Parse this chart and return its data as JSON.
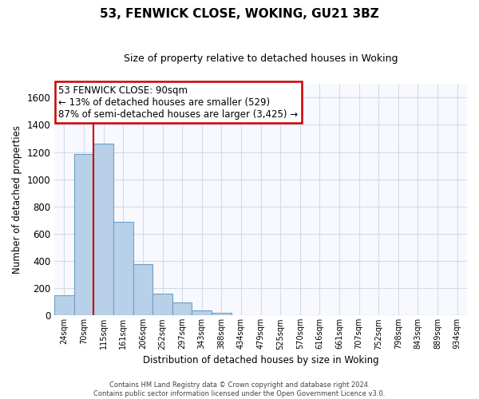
{
  "title": "53, FENWICK CLOSE, WOKING, GU21 3BZ",
  "subtitle": "Size of property relative to detached houses in Woking",
  "xlabel": "Distribution of detached houses by size in Woking",
  "ylabel": "Number of detached properties",
  "bar_labels": [
    "24sqm",
    "70sqm",
    "115sqm",
    "161sqm",
    "206sqm",
    "252sqm",
    "297sqm",
    "343sqm",
    "388sqm",
    "434sqm",
    "479sqm",
    "525sqm",
    "570sqm",
    "616sqm",
    "661sqm",
    "707sqm",
    "752sqm",
    "798sqm",
    "843sqm",
    "889sqm",
    "934sqm"
  ],
  "bar_values": [
    148,
    1185,
    1260,
    690,
    375,
    160,
    93,
    38,
    22,
    0,
    0,
    0,
    0,
    0,
    0,
    0,
    0,
    0,
    0,
    0,
    0
  ],
  "bar_color": "#b8d0e8",
  "bar_edge_color": "#6ca0c8",
  "vline_color": "#cc0000",
  "vline_x": 1.5,
  "ylim": [
    0,
    1700
  ],
  "yticks": [
    0,
    200,
    400,
    600,
    800,
    1000,
    1200,
    1400,
    1600
  ],
  "annotation_line1": "53 FENWICK CLOSE: 90sqm",
  "annotation_line2": "← 13% of detached houses are smaller (529)",
  "annotation_line3": "87% of semi-detached houses are larger (3,425) →",
  "annotation_box_color": "#ffffff",
  "annotation_box_edge": "#cc0000",
  "grid_color": "#d0dce8",
  "footer_line1": "Contains HM Land Registry data © Crown copyright and database right 2024.",
  "footer_line2": "Contains public sector information licensed under the Open Government Licence v3.0."
}
